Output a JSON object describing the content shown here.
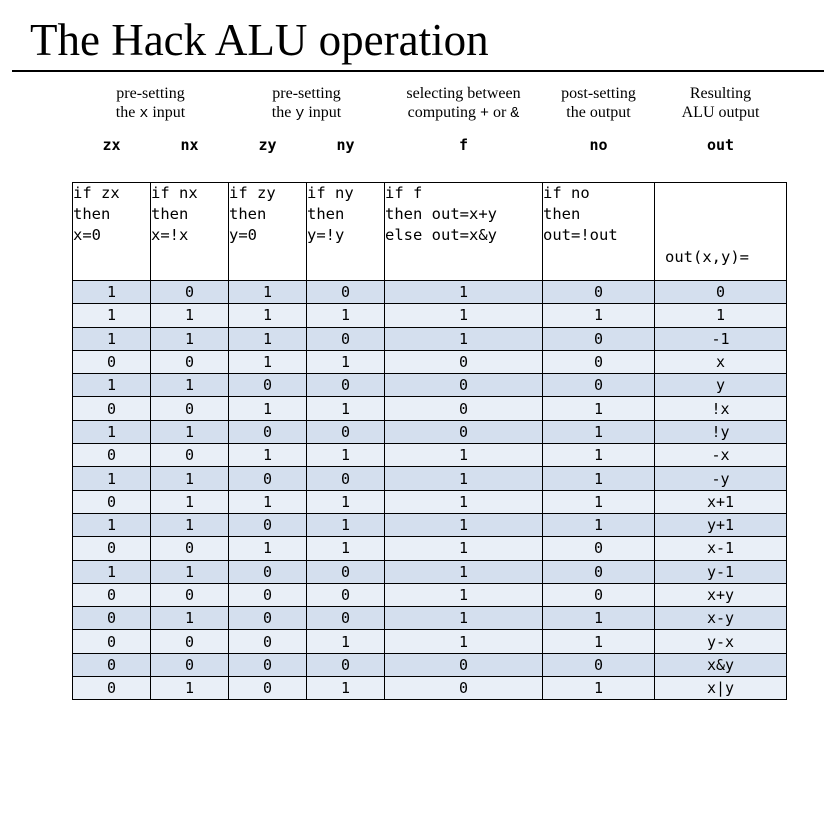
{
  "title": "The Hack ALU operation",
  "groups": [
    {
      "line1": "pre-setting",
      "line2_pre": "the ",
      "line2_mono": "x",
      "line2_post": " input"
    },
    {
      "line1": "pre-setting",
      "line2_pre": "the ",
      "line2_mono": "y",
      "line2_post": " input"
    },
    {
      "line1": "selecting between",
      "line2_pre": "computing ",
      "line2_mono": "+",
      "line2_mid": " or ",
      "line2_mono2": "&",
      "line2_post": ""
    },
    {
      "line1": "post-setting",
      "line2_pre": "the output",
      "line2_mono": "",
      "line2_post": ""
    },
    {
      "line1": "Resulting",
      "line2_pre": "ALU output",
      "line2_mono": "",
      "line2_post": ""
    }
  ],
  "columns": [
    "zx",
    "nx",
    "zy",
    "ny",
    "f",
    "no",
    "out"
  ],
  "descriptions": [
    "if zx\nthen\nx=0",
    "if nx\nthen\nx=!x",
    "if zy\nthen\ny=0",
    "if ny\nthen\ny=!y",
    "if f\nthen out=x+y\nelse out=x&y",
    "if no\nthen\nout=!out",
    "out(x,y)="
  ],
  "rows": [
    [
      "1",
      "0",
      "1",
      "0",
      "1",
      "0",
      "0"
    ],
    [
      "1",
      "1",
      "1",
      "1",
      "1",
      "1",
      "1"
    ],
    [
      "1",
      "1",
      "1",
      "0",
      "1",
      "0",
      "-1"
    ],
    [
      "0",
      "0",
      "1",
      "1",
      "0",
      "0",
      "x"
    ],
    [
      "1",
      "1",
      "0",
      "0",
      "0",
      "0",
      "y"
    ],
    [
      "0",
      "0",
      "1",
      "1",
      "0",
      "1",
      "!x"
    ],
    [
      "1",
      "1",
      "0",
      "0",
      "0",
      "1",
      "!y"
    ],
    [
      "0",
      "0",
      "1",
      "1",
      "1",
      "1",
      "-x"
    ],
    [
      "1",
      "1",
      "0",
      "0",
      "1",
      "1",
      "-y"
    ],
    [
      "0",
      "1",
      "1",
      "1",
      "1",
      "1",
      "x+1"
    ],
    [
      "1",
      "1",
      "0",
      "1",
      "1",
      "1",
      "y+1"
    ],
    [
      "0",
      "0",
      "1",
      "1",
      "1",
      "0",
      "x-1"
    ],
    [
      "1",
      "1",
      "0",
      "0",
      "1",
      "0",
      "y-1"
    ],
    [
      "0",
      "0",
      "0",
      "0",
      "1",
      "0",
      "x+y"
    ],
    [
      "0",
      "1",
      "0",
      "0",
      "1",
      "1",
      "x-y"
    ],
    [
      "0",
      "0",
      "0",
      "1",
      "1",
      "1",
      "y-x"
    ],
    [
      "0",
      "0",
      "0",
      "0",
      "0",
      "0",
      "x&y"
    ],
    [
      "0",
      "1",
      "0",
      "1",
      "0",
      "1",
      "x|y"
    ]
  ]
}
